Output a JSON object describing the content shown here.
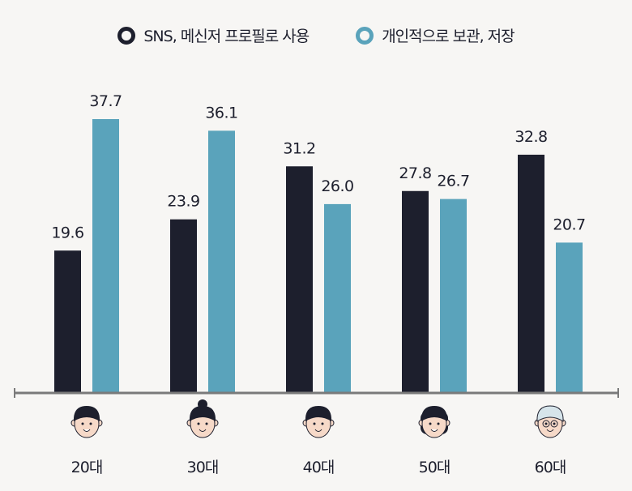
{
  "chart_data": {
    "type": "bar",
    "categories": [
      "20대",
      "30대",
      "40대",
      "50대",
      "60대"
    ],
    "series": [
      {
        "name": "SNS, 메신저 프로필로 사용",
        "values": [
          19.6,
          23.9,
          31.2,
          27.8,
          32.8
        ],
        "color": "#1d1f2d"
      },
      {
        "name": "개인적으로 보관, 저장",
        "values": [
          37.7,
          36.1,
          26.0,
          26.7,
          20.7
        ],
        "color": "#5aa3bb"
      }
    ],
    "title": "",
    "xlabel": "",
    "ylabel": "",
    "ylim": [
      0,
      40
    ],
    "grid": false,
    "legend": "top-center",
    "category_icons": [
      "young-man-face-icon",
      "woman-bun-face-icon",
      "man-face-icon",
      "woman-face-icon",
      "elderly-face-icon"
    ]
  }
}
